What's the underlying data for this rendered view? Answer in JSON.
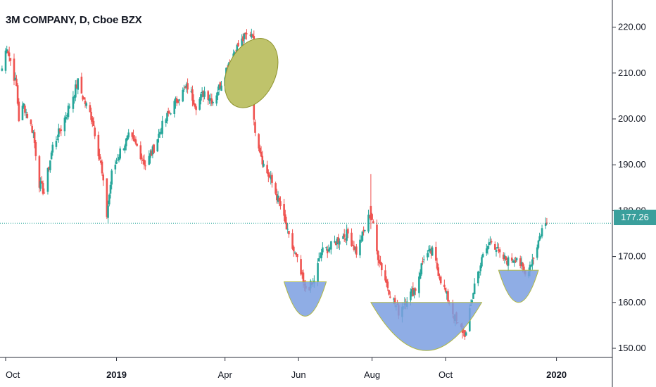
{
  "header": {
    "title": "3M COMPANY, D, Cboe BZX"
  },
  "colors": {
    "up": "#26a69a",
    "down": "#ef5350",
    "last_price_line": "#26a69a",
    "price_tag": "#3a9f9c",
    "cup_fill": "#7b9fe0",
    "ellipse_fill": "#bfc36b"
  },
  "last_price": {
    "label": "177.26",
    "value": 177.26
  },
  "chart_data": {
    "type": "candlestick",
    "title": "3M COMPANY, D, Cboe BZX",
    "ylim": [
      146,
      223
    ],
    "y_ticks": [
      "150.00",
      "160.00",
      "170.00",
      "180.00",
      "190.00",
      "200.00",
      "210.00",
      "220.00"
    ],
    "x_ticks": [
      {
        "label": "Oct",
        "bold": false
      },
      {
        "label": "2019",
        "bold": true
      },
      {
        "label": "Apr",
        "bold": false
      },
      {
        "label": "Jun",
        "bold": false
      },
      {
        "label": "Aug",
        "bold": false
      },
      {
        "label": "Oct",
        "bold": false
      },
      {
        "label": "2020",
        "bold": true
      }
    ],
    "close_path": [
      [
        "2018-09-28",
        211
      ],
      [
        "2018-10-02",
        216
      ],
      [
        "2018-10-10",
        207
      ],
      [
        "2018-10-12",
        200
      ],
      [
        "2018-10-16",
        203
      ],
      [
        "2018-10-24",
        197
      ],
      [
        "2018-10-29",
        186
      ],
      [
        "2018-11-02",
        184
      ],
      [
        "2018-11-09",
        194
      ],
      [
        "2018-11-16",
        198
      ],
      [
        "2018-11-23",
        203
      ],
      [
        "2018-11-30",
        208
      ],
      [
        "2018-12-05",
        204
      ],
      [
        "2018-12-12",
        200
      ],
      [
        "2018-12-19",
        190
      ],
      [
        "2018-12-24",
        179
      ],
      [
        "2018-12-28",
        188
      ],
      [
        "2019-01-04",
        193
      ],
      [
        "2019-01-11",
        196
      ],
      [
        "2019-01-18",
        194
      ],
      [
        "2019-01-25",
        190
      ],
      [
        "2019-01-31",
        193
      ],
      [
        "2019-02-07",
        198
      ],
      [
        "2019-02-15",
        202
      ],
      [
        "2019-02-22",
        205
      ],
      [
        "2019-03-01",
        207
      ],
      [
        "2019-03-08",
        203
      ],
      [
        "2019-03-15",
        206
      ],
      [
        "2019-03-22",
        204
      ],
      [
        "2019-03-29",
        208
      ],
      [
        "2019-04-05",
        213
      ],
      [
        "2019-04-12",
        216
      ],
      [
        "2019-04-18",
        218
      ],
      [
        "2019-04-24",
        219
      ],
      [
        "2019-04-25",
        199
      ],
      [
        "2019-05-03",
        190
      ],
      [
        "2019-05-10",
        186
      ],
      [
        "2019-05-17",
        181
      ],
      [
        "2019-05-24",
        174
      ],
      [
        "2019-05-31",
        169
      ],
      [
        "2019-06-06",
        163
      ],
      [
        "2019-06-13",
        164
      ],
      [
        "2019-06-20",
        171
      ],
      [
        "2019-06-27",
        172
      ],
      [
        "2019-07-05",
        174
      ],
      [
        "2019-07-12",
        175
      ],
      [
        "2019-07-19",
        171
      ],
      [
        "2019-07-26",
        176
      ],
      [
        "2019-07-31",
        180
      ],
      [
        "2019-08-05",
        171
      ],
      [
        "2019-08-12",
        165
      ],
      [
        "2019-08-16",
        162
      ],
      [
        "2019-08-23",
        158
      ],
      [
        "2019-08-30",
        161
      ],
      [
        "2019-09-06",
        163
      ],
      [
        "2019-09-13",
        170
      ],
      [
        "2019-09-20",
        171
      ],
      [
        "2019-09-27",
        165
      ],
      [
        "2019-10-04",
        160
      ],
      [
        "2019-10-11",
        155
      ],
      [
        "2019-10-18",
        153
      ],
      [
        "2019-10-25",
        164
      ],
      [
        "2019-11-01",
        170
      ],
      [
        "2019-11-08",
        174
      ],
      [
        "2019-11-15",
        170
      ],
      [
        "2019-11-22",
        169
      ],
      [
        "2019-11-29",
        170
      ],
      [
        "2019-12-06",
        166
      ],
      [
        "2019-12-13",
        170
      ],
      [
        "2019-12-20",
        176
      ],
      [
        "2019-12-24",
        177.26
      ]
    ],
    "annotations": [
      {
        "type": "ellipse",
        "date": "2019-04-24",
        "price": 210
      },
      {
        "type": "cup",
        "date_start": "2019-05-20",
        "date_end": "2019-06-24",
        "top": 164.5,
        "bottom": 157
      },
      {
        "type": "cup",
        "date_start": "2019-07-31",
        "date_end": "2019-10-31",
        "top": 160,
        "bottom": 149.5
      },
      {
        "type": "cup",
        "date_start": "2019-11-14",
        "date_end": "2019-12-17",
        "top": 167,
        "bottom": 160
      }
    ],
    "grid": false,
    "legend": "none"
  }
}
